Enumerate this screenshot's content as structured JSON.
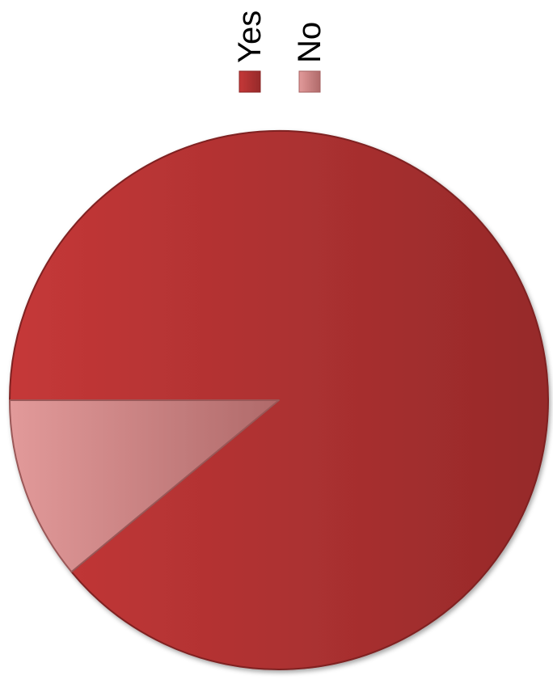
{
  "chart_data": {
    "type": "pie",
    "series": [
      {
        "name": "Yes",
        "value": 89,
        "color": "#b83232"
      },
      {
        "name": "No",
        "value": 11,
        "color": "#d98585"
      }
    ],
    "legend": {
      "placement": "top",
      "orientation": "rotated-90"
    },
    "style": "3d-bevel"
  }
}
